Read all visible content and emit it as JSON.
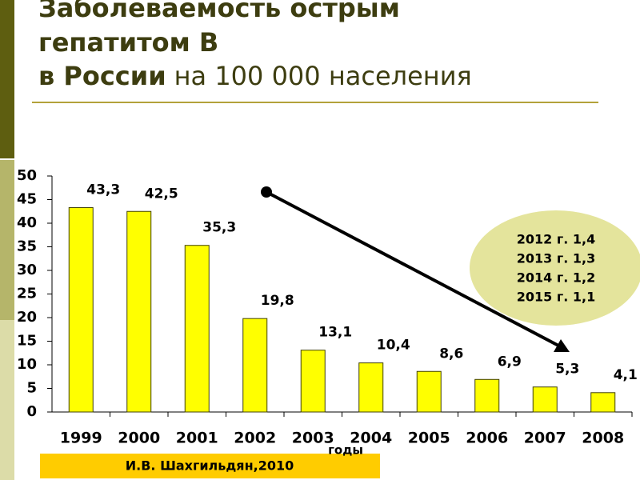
{
  "chart_data": {
    "type": "bar",
    "title": {
      "lines": [
        "Заболеваемость острым",
        "гепатитом В",
        "в России"
      ],
      "tail": "на 100 000 населения"
    },
    "categories": [
      "1999",
      "2000",
      "2001",
      "2002",
      "2003",
      "2004",
      "2005",
      "2006",
      "2007",
      "2008"
    ],
    "values": [
      43.3,
      42.5,
      35.3,
      19.8,
      13.1,
      10.4,
      8.6,
      6.9,
      5.3,
      4.1
    ],
    "value_labels": [
      "43,3",
      "42,5",
      "35,3",
      "19,8",
      "13,1",
      "10,4",
      "8,6",
      "6,9",
      "5,3",
      "4,1"
    ],
    "color": "#ffff00",
    "ylim": [
      0,
      50
    ],
    "yticks": [
      0,
      5,
      10,
      15,
      20,
      25,
      30,
      35,
      40,
      45,
      50
    ],
    "xlabel": "годы",
    "annotation": [
      "2012 г. 1,4",
      "2013 г. 1,3",
      "2014 г. 1,2",
      "2015 г. 1,1"
    ],
    "source": "И.В. Шахгильдян,2010"
  }
}
